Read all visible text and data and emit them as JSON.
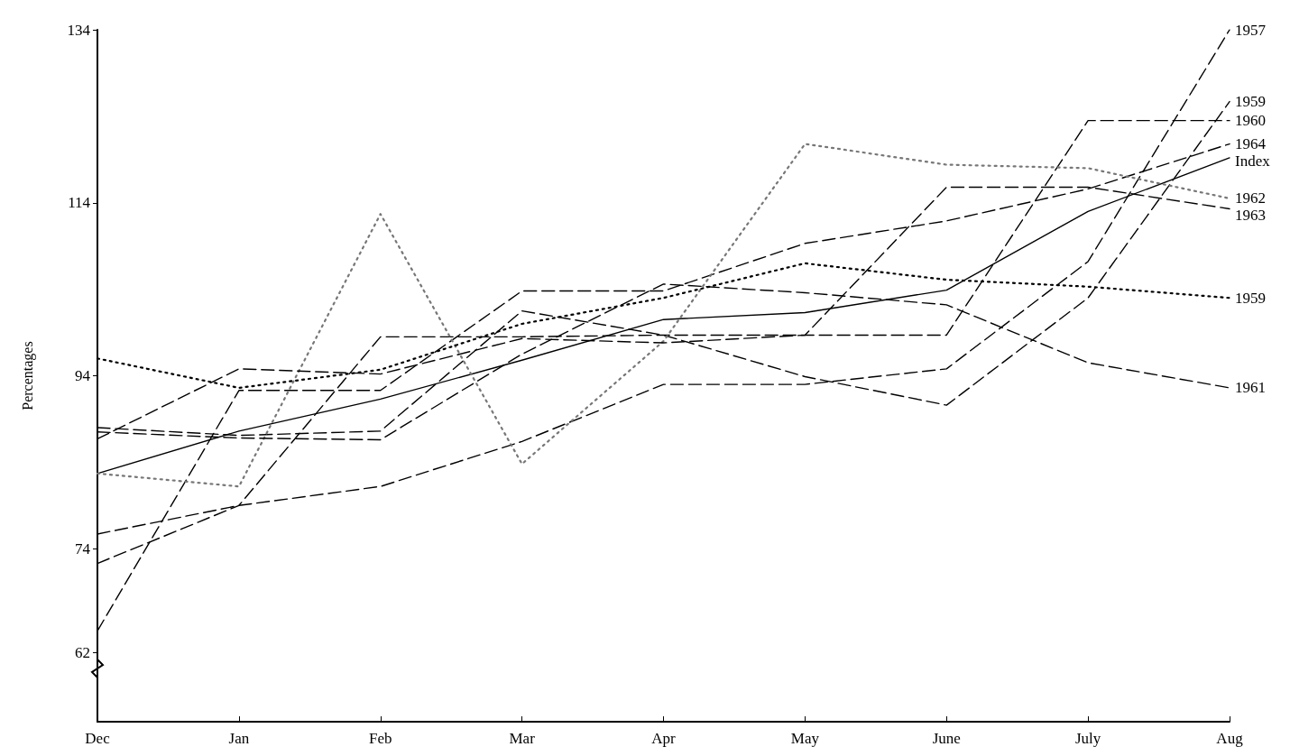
{
  "chart_data": {
    "type": "line",
    "ylabel": "Percentages",
    "categories": [
      "Dec",
      "Jan",
      "Feb",
      "Mar",
      "Apr",
      "May",
      "June",
      "July",
      "Aug"
    ],
    "ylim": [
      54,
      134
    ],
    "yticks": [
      62,
      74,
      94,
      114,
      134
    ],
    "grid": false,
    "legend": false,
    "marker": "none",
    "series": [
      {
        "name": "Index",
        "color": "#000000",
        "line_style": "solid",
        "values": [
          82.7,
          87.6,
          91.3,
          95.8,
          100.5,
          101.3,
          103.9,
          113,
          119.2
        ]
      },
      {
        "name": "1957",
        "color": "#000000",
        "line_style": "dashed",
        "values": [
          75.7,
          79,
          81.2,
          86.4,
          93,
          93,
          94.8,
          107.2,
          134
        ]
      },
      {
        "name": "1959",
        "color": "#000000",
        "line_style": "dashed",
        "values": [
          88,
          87.1,
          87.6,
          101.5,
          98.7,
          93.9,
          90.6,
          103,
          125.7
        ]
      },
      {
        "name": "1960",
        "color": "#000000",
        "line_style": "dashed",
        "values": [
          72.3,
          79,
          98.5,
          98.5,
          98.7,
          98.7,
          98.7,
          123.5,
          123.5
        ]
      },
      {
        "name": "1964",
        "color": "#000000",
        "line_style": "dashed",
        "values": [
          64.5,
          92.3,
          92.3,
          103.8,
          103.8,
          109.3,
          111.9,
          115.6,
          120.8
        ]
      },
      {
        "name": "1962",
        "color": "#777777",
        "line_style": "dotted",
        "values": [
          82.7,
          81.2,
          112.7,
          83.8,
          98,
          120.8,
          118.4,
          118,
          114.5
        ]
      },
      {
        "name": "1963",
        "color": "#000000",
        "line_style": "dashed",
        "values": [
          86.7,
          94.8,
          94.2,
          98.3,
          97.8,
          98.7,
          115.8,
          115.8,
          113.3
        ]
      },
      {
        "name": "1959",
        "color": "#000000",
        "line_style": "dotted",
        "values": [
          96,
          92.6,
          94.7,
          100,
          103,
          107,
          105.1,
          104.3,
          103
        ]
      },
      {
        "name": "1961",
        "color": "#000000",
        "line_style": "dashed",
        "values": [
          87.5,
          86.8,
          86.6,
          96.5,
          104.6,
          103.6,
          102.2,
          95.5,
          92.6
        ]
      }
    ]
  }
}
